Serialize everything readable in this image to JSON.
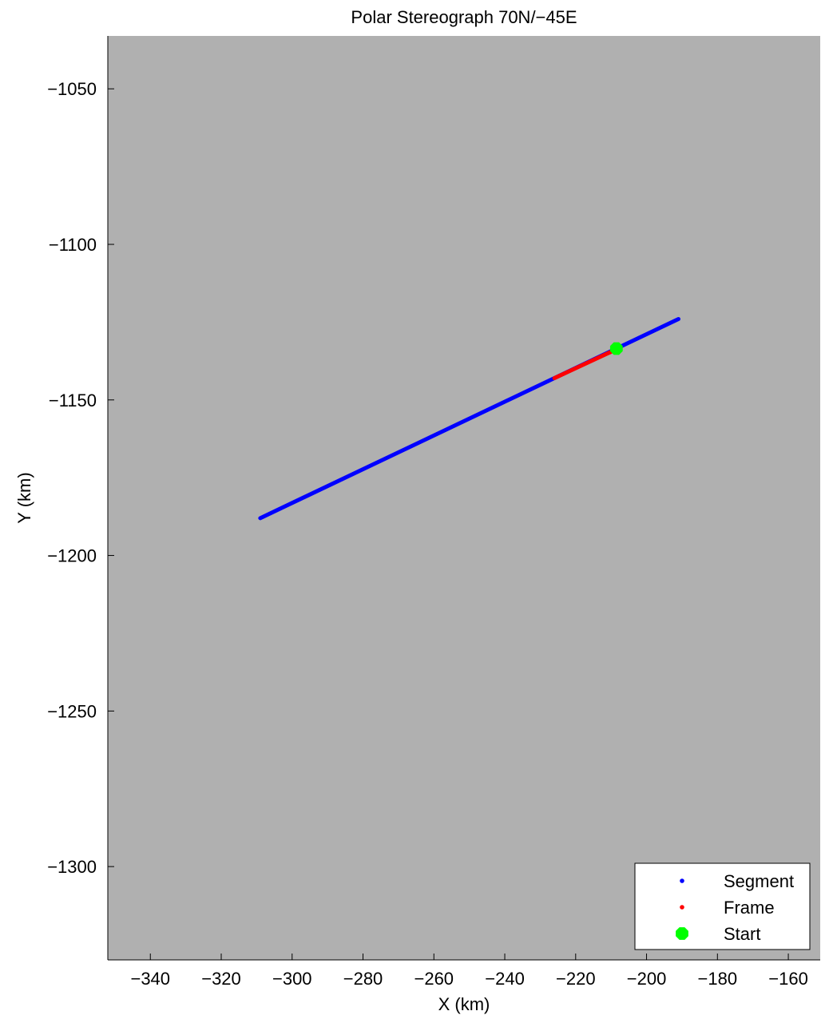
{
  "chart_data": {
    "type": "line",
    "title": "Polar Stereograph 70N/−45E",
    "xlabel": "X (km)",
    "ylabel": "Y (km)",
    "xlim": [
      -352,
      -151
    ],
    "ylim": [
      -1330,
      -1033
    ],
    "xticks": [
      -340,
      -320,
      -300,
      -280,
      -260,
      -240,
      -220,
      -200,
      -180,
      -160
    ],
    "yticks": [
      -1050,
      -1100,
      -1150,
      -1200,
      -1250,
      -1300
    ],
    "xtick_labels": [
      "−340",
      "−320",
      "−300",
      "−280",
      "−260",
      "−240",
      "−220",
      "−200",
      "−180",
      "−160"
    ],
    "ytick_labels": [
      "−1050",
      "−1100",
      "−1150",
      "−1200",
      "−1250",
      "−1300"
    ],
    "grid": false,
    "background_color": "#b0b0b0",
    "legend_position": "bottom-right",
    "series": [
      {
        "name": "Segment",
        "color": "#0000ff",
        "marker": "dot",
        "x": [
          -309.0,
          -191.0
        ],
        "y": [
          -1188.0,
          -1124.0
        ]
      },
      {
        "name": "Frame",
        "color": "#ff0000",
        "marker": "dot",
        "x": [
          -226.0,
          -209.0
        ],
        "y": [
          -1143.0,
          -1134.0
        ]
      },
      {
        "name": "Start",
        "color": "#00ff00",
        "marker": "octagon",
        "x": [
          -208.5
        ],
        "y": [
          -1133.5
        ]
      }
    ]
  }
}
